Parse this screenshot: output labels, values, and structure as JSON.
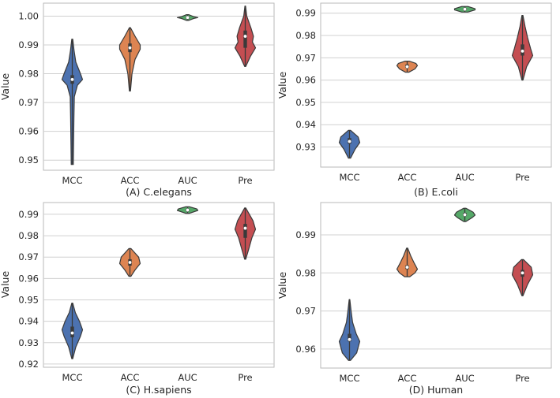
{
  "palette": {
    "MCC": "#4c72b0",
    "ACC": "#dd8452",
    "AUC": "#55a868",
    "Pre": "#c44e52"
  },
  "chart_data": [
    {
      "type": "violin",
      "title": "",
      "xlabel": "(A) C.elegans",
      "ylabel": "Value",
      "categories": [
        "MCC",
        "ACC",
        "AUC",
        "Pre"
      ],
      "ylim": [
        0.9465,
        1.0045
      ],
      "yticks": [
        "0.95",
        "0.96",
        "0.97",
        "0.98",
        "0.99",
        "1.00"
      ],
      "series": [
        {
          "name": "MCC",
          "min": 0.9485,
          "max": 0.992,
          "q1": 0.9765,
          "median": 0.978,
          "q3": 0.9795,
          "profile": [
            [
              0.9485,
              0.1
            ],
            [
              0.955,
              0.12
            ],
            [
              0.965,
              0.16
            ],
            [
              0.972,
              0.2
            ],
            [
              0.976,
              0.5
            ],
            [
              0.978,
              1.0
            ],
            [
              0.98,
              0.8
            ],
            [
              0.984,
              0.35
            ],
            [
              0.988,
              0.18
            ],
            [
              0.992,
              0.05
            ]
          ]
        },
        {
          "name": "ACC",
          "min": 0.974,
          "max": 0.996,
          "q1": 0.9875,
          "median": 0.989,
          "q3": 0.9905,
          "profile": [
            [
              0.974,
              0.05
            ],
            [
              0.98,
              0.2
            ],
            [
              0.985,
              0.5
            ],
            [
              0.9885,
              1.0
            ],
            [
              0.99,
              1.0
            ],
            [
              0.993,
              0.5
            ],
            [
              0.996,
              0.05
            ]
          ]
        },
        {
          "name": "AUC",
          "min": 0.9985,
          "max": 1.0005,
          "q1": 0.9993,
          "median": 0.9995,
          "q3": 0.9998,
          "profile": [
            [
              0.9985,
              0.1
            ],
            [
              0.9992,
              0.6
            ],
            [
              0.9995,
              1.0
            ],
            [
              0.9998,
              0.6
            ],
            [
              1.0005,
              0.1
            ]
          ]
        },
        {
          "name": "Pre",
          "min": 0.9825,
          "max": 1.0035,
          "q1": 0.989,
          "median": 0.993,
          "q3": 0.995,
          "profile": [
            [
              0.9825,
              0.05
            ],
            [
              0.986,
              0.5
            ],
            [
              0.989,
              1.0
            ],
            [
              0.991,
              0.7
            ],
            [
              0.993,
              0.8
            ],
            [
              0.996,
              0.55
            ],
            [
              1.0,
              0.15
            ],
            [
              1.0035,
              0.03
            ]
          ]
        }
      ]
    },
    {
      "type": "violin",
      "title": "",
      "xlabel": "(B) E.coli",
      "ylabel": "Value",
      "categories": [
        "MCC",
        "ACC",
        "AUC",
        "Pre"
      ],
      "ylim": [
        0.921,
        0.9945
      ],
      "yticks": [
        "0.93",
        "0.94",
        "0.95",
        "0.96",
        "0.97",
        "0.98",
        "0.99"
      ],
      "series": [
        {
          "name": "MCC",
          "min": 0.925,
          "max": 0.9375,
          "q1": 0.9315,
          "median": 0.9325,
          "q3": 0.934,
          "profile": [
            [
              0.925,
              0.1
            ],
            [
              0.929,
              0.55
            ],
            [
              0.932,
              1.0
            ],
            [
              0.9345,
              0.85
            ],
            [
              0.9375,
              0.1
            ]
          ]
        },
        {
          "name": "ACC",
          "min": 0.9635,
          "max": 0.9685,
          "q1": 0.9655,
          "median": 0.966,
          "q3": 0.967,
          "profile": [
            [
              0.9635,
              0.15
            ],
            [
              0.965,
              0.75
            ],
            [
              0.9665,
              1.0
            ],
            [
              0.9675,
              0.85
            ],
            [
              0.9685,
              0.2
            ]
          ]
        },
        {
          "name": "AUC",
          "min": 0.9905,
          "max": 0.993,
          "q1": 0.9915,
          "median": 0.9918,
          "q3": 0.9922,
          "profile": [
            [
              0.9905,
              0.3
            ],
            [
              0.9915,
              1.0
            ],
            [
              0.992,
              1.0
            ],
            [
              0.993,
              0.3
            ]
          ]
        },
        {
          "name": "Pre",
          "min": 0.96,
          "max": 0.989,
          "q1": 0.971,
          "median": 0.973,
          "q3": 0.976,
          "profile": [
            [
              0.96,
              0.05
            ],
            [
              0.966,
              0.4
            ],
            [
              0.971,
              1.0
            ],
            [
              0.974,
              0.8
            ],
            [
              0.979,
              0.5
            ],
            [
              0.984,
              0.25
            ],
            [
              0.989,
              0.05
            ]
          ]
        }
      ]
    },
    {
      "type": "violin",
      "title": "",
      "xlabel": "(C) H.sapiens",
      "ylabel": "Value",
      "categories": [
        "MCC",
        "ACC",
        "AUC",
        "Pre"
      ],
      "ylim": [
        0.9185,
        0.9955
      ],
      "yticks": [
        "0.92",
        "0.93",
        "0.94",
        "0.95",
        "0.96",
        "0.97",
        "0.98",
        "0.99"
      ],
      "series": [
        {
          "name": "MCC",
          "min": 0.9225,
          "max": 0.9485,
          "q1": 0.9325,
          "median": 0.9345,
          "q3": 0.9375,
          "profile": [
            [
              0.9225,
              0.05
            ],
            [
              0.928,
              0.35
            ],
            [
              0.933,
              0.8
            ],
            [
              0.936,
              1.0
            ],
            [
              0.94,
              0.7
            ],
            [
              0.944,
              0.3
            ],
            [
              0.9485,
              0.05
            ]
          ]
        },
        {
          "name": "ACC",
          "min": 0.961,
          "max": 0.974,
          "q1": 0.966,
          "median": 0.9675,
          "q3": 0.969,
          "profile": [
            [
              0.961,
              0.1
            ],
            [
              0.964,
              0.5
            ],
            [
              0.967,
              1.0
            ],
            [
              0.97,
              0.85
            ],
            [
              0.974,
              0.1
            ]
          ]
        },
        {
          "name": "AUC",
          "min": 0.9905,
          "max": 0.9935,
          "q1": 0.9915,
          "median": 0.992,
          "q3": 0.9925,
          "profile": [
            [
              0.9905,
              0.2
            ],
            [
              0.9918,
              1.0
            ],
            [
              0.9925,
              0.9
            ],
            [
              0.9935,
              0.2
            ]
          ]
        },
        {
          "name": "Pre",
          "min": 0.969,
          "max": 0.993,
          "q1": 0.979,
          "median": 0.9835,
          "q3": 0.9855,
          "profile": [
            [
              0.969,
              0.05
            ],
            [
              0.974,
              0.35
            ],
            [
              0.979,
              0.65
            ],
            [
              0.983,
              1.0
            ],
            [
              0.987,
              0.75
            ],
            [
              0.99,
              0.4
            ],
            [
              0.993,
              0.05
            ]
          ]
        }
      ]
    },
    {
      "type": "violin",
      "title": "",
      "xlabel": "(D) Human",
      "ylabel": "Value",
      "categories": [
        "MCC",
        "ACC",
        "AUC",
        "Pre"
      ],
      "ylim": [
        0.955,
        0.9985
      ],
      "yticks": [
        "0.96",
        "0.97",
        "0.98",
        "0.99"
      ],
      "series": [
        {
          "name": "MCC",
          "min": 0.957,
          "max": 0.973,
          "q1": 0.962,
          "median": 0.9625,
          "q3": 0.964,
          "profile": [
            [
              0.957,
              0.1
            ],
            [
              0.959,
              0.7
            ],
            [
              0.962,
              1.0
            ],
            [
              0.964,
              0.65
            ],
            [
              0.967,
              0.3
            ],
            [
              0.97,
              0.15
            ],
            [
              0.973,
              0.03
            ]
          ]
        },
        {
          "name": "ACC",
          "min": 0.979,
          "max": 0.9865,
          "q1": 0.981,
          "median": 0.9815,
          "q3": 0.982,
          "profile": [
            [
              0.979,
              0.25
            ],
            [
              0.98,
              0.75
            ],
            [
              0.981,
              1.0
            ],
            [
              0.9825,
              0.7
            ],
            [
              0.9845,
              0.35
            ],
            [
              0.9865,
              0.05
            ]
          ]
        },
        {
          "name": "AUC",
          "min": 0.9935,
          "max": 0.997,
          "q1": 0.995,
          "median": 0.9953,
          "q3": 0.9958,
          "profile": [
            [
              0.9935,
              0.1
            ],
            [
              0.9945,
              0.7
            ],
            [
              0.9952,
              1.0
            ],
            [
              0.996,
              0.8
            ],
            [
              0.997,
              0.1
            ]
          ]
        },
        {
          "name": "Pre",
          "min": 0.974,
          "max": 0.9835,
          "q1": 0.979,
          "median": 0.98,
          "q3": 0.9808,
          "profile": [
            [
              0.974,
              0.05
            ],
            [
              0.977,
              0.5
            ],
            [
              0.9795,
              1.0
            ],
            [
              0.9815,
              0.85
            ],
            [
              0.9835,
              0.1
            ]
          ]
        }
      ]
    }
  ]
}
